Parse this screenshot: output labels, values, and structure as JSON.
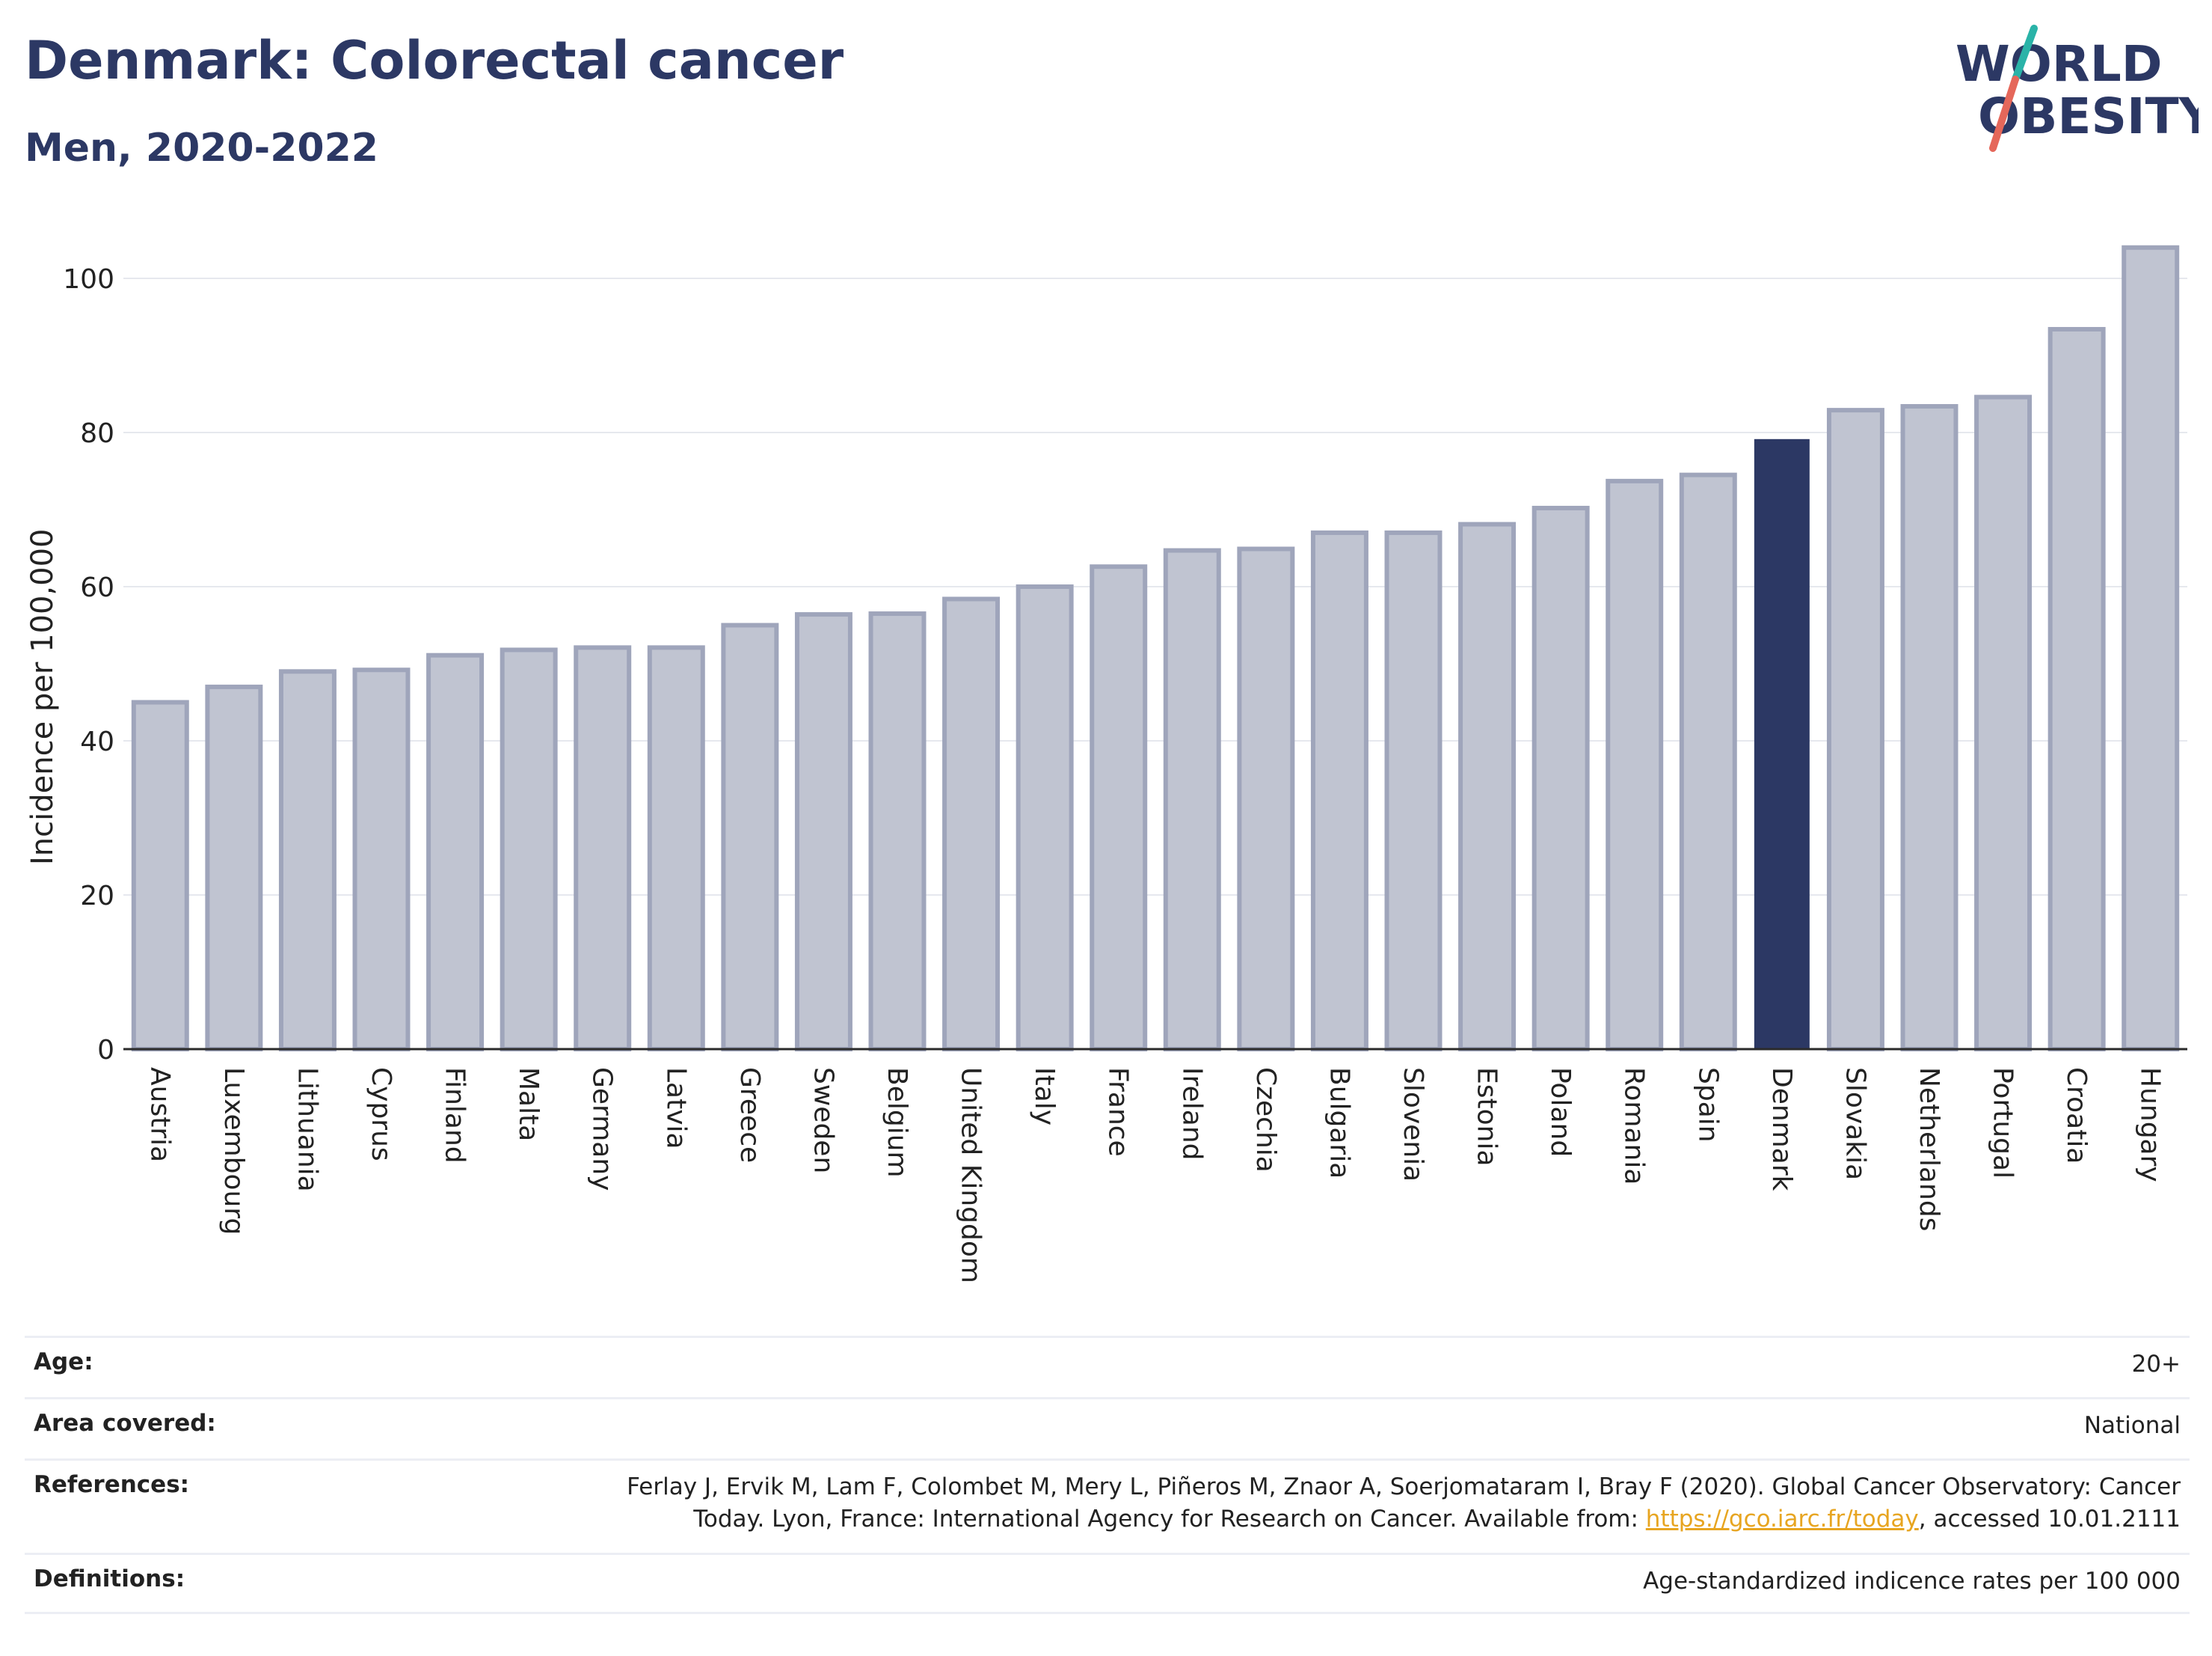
{
  "header": {
    "title": "Denmark: Colorectal cancer",
    "subtitle": "Men, 2020-2022"
  },
  "logo": {
    "line1": "WORLD",
    "line2": "OBESITY",
    "colors": {
      "text": "#2c3864",
      "slash_top": "#2ab3a8",
      "slash_bottom": "#e5675a"
    }
  },
  "chart_data": {
    "type": "bar",
    "ylabel": "Incidence per 100,000",
    "xlabel": "",
    "ylim": [
      0,
      105
    ],
    "yticks": [
      0,
      20,
      40,
      60,
      80,
      100
    ],
    "grid": true,
    "highlight": "Denmark",
    "colors": {
      "bar": "#c0c4d1",
      "bar_border": "#9fa5bb",
      "highlight": "#2c3864"
    },
    "categories": [
      "Austria",
      "Luxembourg",
      "Lithuania",
      "Cyprus",
      "Finland",
      "Malta",
      "Germany",
      "Latvia",
      "Greece",
      "Sweden",
      "Belgium",
      "United Kingdom",
      "Italy",
      "France",
      "Ireland",
      "Czechia",
      "Bulgaria",
      "Slovenia",
      "Estonia",
      "Poland",
      "Romania",
      "Spain",
      "Denmark",
      "Slovakia",
      "Netherlands",
      "Portugal",
      "Croatia",
      "Hungary"
    ],
    "values": [
      45.0,
      47.0,
      49.0,
      49.2,
      51.1,
      51.8,
      52.1,
      52.1,
      55.0,
      56.4,
      56.5,
      58.4,
      60.0,
      62.6,
      64.7,
      64.9,
      67.0,
      67.0,
      68.1,
      70.2,
      73.7,
      74.5,
      79.0,
      82.9,
      83.4,
      84.6,
      93.4,
      104.0
    ]
  },
  "info": {
    "age_label": "Age:",
    "age_value": "20+",
    "area_label": "Area covered:",
    "area_value": "National",
    "references_label": "References:",
    "references_line1": "Ferlay J, Ervik M, Lam F, Colombet M, Mery L, Piñeros M, Znaor A, Soerjomataram I, Bray F (2020). Global Cancer Observatory: Cancer",
    "references_line2_prefix": "Today. Lyon, France: International Agency for Research on Cancer. Available from: ",
    "references_link": "https://gco.iarc.fr/today",
    "references_line2_suffix": ", accessed 10.01.2111",
    "definitions_label": "Definitions:",
    "definitions_value": "Age-standardized indicence rates per 100 000"
  }
}
